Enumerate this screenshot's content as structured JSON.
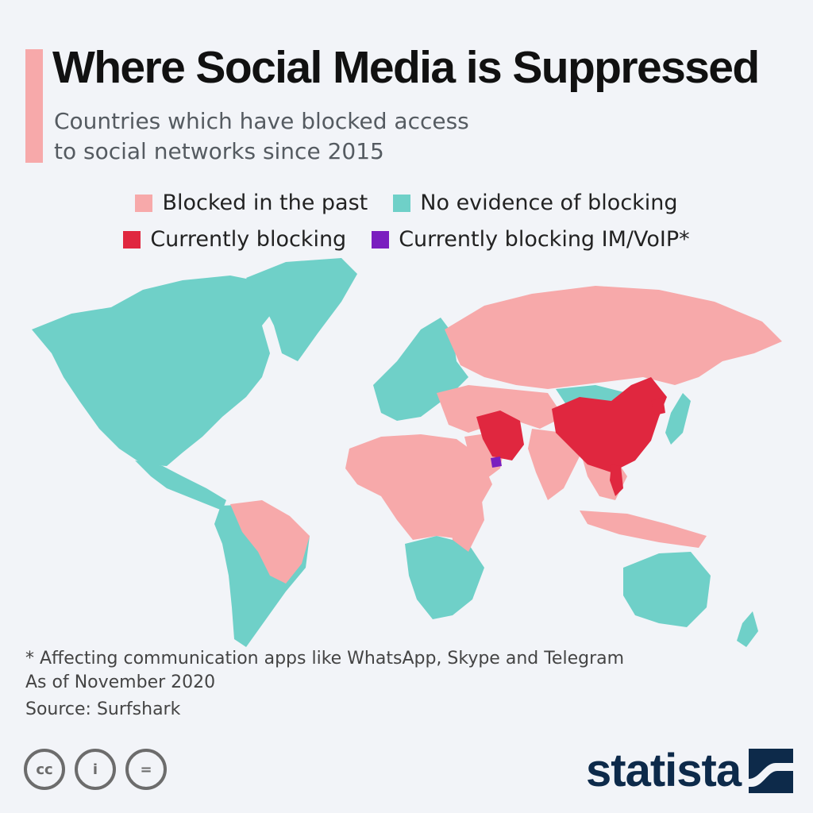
{
  "header": {
    "title": "Where Social Media is Suppressed",
    "subtitle_line1": "Countries which have blocked access",
    "subtitle_line2": "to social networks since 2015"
  },
  "legend": {
    "items": [
      {
        "label": "Blocked in the past",
        "color": "#f7a9aa"
      },
      {
        "label": "No evidence of blocking",
        "color": "#6fd0c8"
      },
      {
        "label": "Currently blocking",
        "color": "#e0273f"
      },
      {
        "label": "Currently blocking IM/VoIP*",
        "color": "#7a1fbf"
      }
    ]
  },
  "map_colors": {
    "blocked_past": "#f7a9aa",
    "no_evidence": "#6fd0c8",
    "currently_blocking": "#e0273f",
    "im_voip": "#7a1fbf"
  },
  "footer": {
    "footnote": "* Affecting communication apps like WhatsApp, Skype and Telegram",
    "date_note": "As of November 2020",
    "source": "Source: Surfshark",
    "brand": "statista",
    "cc_labels": [
      "cc",
      "i",
      "="
    ]
  }
}
